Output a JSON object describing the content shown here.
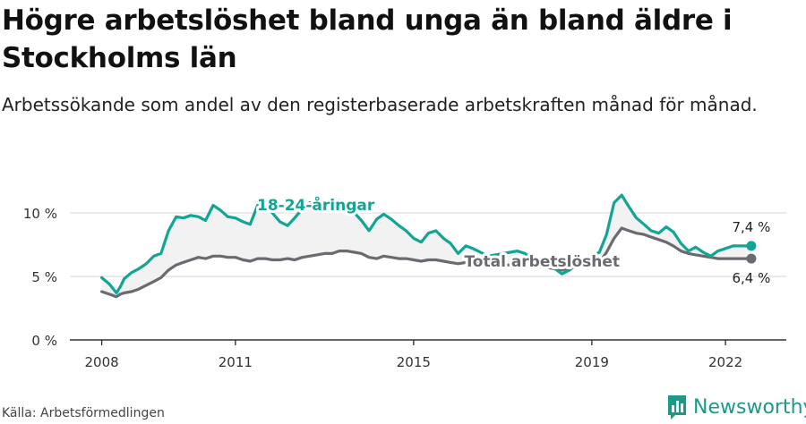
{
  "header": {
    "title": "Högre arbetslöshet bland unga än bland äldre i Stockholms län",
    "subtitle": "Arbetssökande som andel av den registerbaserade arbetskraften månad för månad."
  },
  "footer": {
    "source": "Källa: Arbetsförmedlingen",
    "brand": "Newsworthy"
  },
  "colors": {
    "youth": "#12a594",
    "total": "#6b6a70",
    "band": "#f2f2f2",
    "grid": "#dddddd",
    "axis": "#333333",
    "brand": "#1b9a8a"
  },
  "chart_data": {
    "type": "line",
    "title": "Högre arbetslöshet bland unga än bland äldre i Stockholms län",
    "xlabel": "",
    "ylabel": "",
    "ylim": [
      0,
      12
    ],
    "xlim": [
      2007.4,
      2022.9
    ],
    "yticks": [
      0,
      5,
      10
    ],
    "ytick_labels": [
      "0 %",
      "5 %",
      "10 %"
    ],
    "xticks": [
      2008,
      2011,
      2015,
      2019,
      2022
    ],
    "xtick_labels": [
      "2008",
      "2011",
      "2015",
      "2019",
      "2022"
    ],
    "grid": true,
    "series": [
      {
        "name": "18-24-åringar",
        "color": "#12a594",
        "label_position": "above",
        "x": [
          2008.0,
          2008.17,
          2008.33,
          2008.42,
          2008.5,
          2008.67,
          2008.83,
          2009.0,
          2009.17,
          2009.33,
          2009.5,
          2009.67,
          2009.83,
          2010.0,
          2010.17,
          2010.33,
          2010.5,
          2010.67,
          2010.83,
          2011.0,
          2011.17,
          2011.33,
          2011.5,
          2011.67,
          2011.83,
          2012.0,
          2012.17,
          2012.33,
          2012.5,
          2012.67,
          2012.83,
          2013.0,
          2013.17,
          2013.33,
          2013.5,
          2013.67,
          2013.83,
          2014.0,
          2014.17,
          2014.33,
          2014.5,
          2014.67,
          2014.83,
          2015.0,
          2015.17,
          2015.33,
          2015.5,
          2015.67,
          2015.83,
          2016.0,
          2016.17,
          2016.33,
          2016.5,
          2016.67,
          2016.83,
          2017.0,
          2017.17,
          2017.33,
          2017.5,
          2017.67,
          2017.83,
          2018.0,
          2018.17,
          2018.33,
          2018.5,
          2018.67,
          2018.83,
          2019.0,
          2019.17,
          2019.33,
          2019.5,
          2019.67,
          2019.83,
          2020.0,
          2020.17,
          2020.33,
          2020.5,
          2020.67,
          2020.83,
          2021.0,
          2021.17,
          2021.33,
          2021.5,
          2021.67,
          2021.83,
          2022.0,
          2022.17,
          2022.33,
          2022.5,
          2022.58
        ],
        "values": [
          4.9,
          4.4,
          3.7,
          4.2,
          4.8,
          5.3,
          5.6,
          6.0,
          6.6,
          6.8,
          8.6,
          9.7,
          9.6,
          9.8,
          9.7,
          9.4,
          10.6,
          10.2,
          9.7,
          9.6,
          9.3,
          9.1,
          10.6,
          10.7,
          10.0,
          9.3,
          9.0,
          9.6,
          10.3,
          10.8,
          10.3,
          10.5,
          10.9,
          11.0,
          10.6,
          10.0,
          9.4,
          8.6,
          9.5,
          9.9,
          9.5,
          9.0,
          8.6,
          8.0,
          7.7,
          8.4,
          8.6,
          8.0,
          7.6,
          6.8,
          7.4,
          7.2,
          6.9,
          6.6,
          6.7,
          6.8,
          6.9,
          7.0,
          6.8,
          6.4,
          6.3,
          6.1,
          5.6,
          5.2,
          5.5,
          6.0,
          6.4,
          6.6,
          6.9,
          8.3,
          10.8,
          11.4,
          10.5,
          9.6,
          9.1,
          8.6,
          8.4,
          8.9,
          8.5,
          7.6,
          7.0,
          7.3,
          6.9,
          6.6,
          7.0,
          7.2,
          7.4,
          7.4,
          7.4,
          7.4
        ],
        "last_value_label": "7,4 %"
      },
      {
        "name": "Total arbetslöshet",
        "color": "#6b6a70",
        "label_position": "below",
        "x": [
          2008.0,
          2008.17,
          2008.33,
          2008.42,
          2008.5,
          2008.67,
          2008.83,
          2009.0,
          2009.17,
          2009.33,
          2009.5,
          2009.67,
          2009.83,
          2010.0,
          2010.17,
          2010.33,
          2010.5,
          2010.67,
          2010.83,
          2011.0,
          2011.17,
          2011.33,
          2011.5,
          2011.67,
          2011.83,
          2012.0,
          2012.17,
          2012.33,
          2012.5,
          2012.67,
          2012.83,
          2013.0,
          2013.17,
          2013.33,
          2013.5,
          2013.67,
          2013.83,
          2014.0,
          2014.17,
          2014.33,
          2014.5,
          2014.67,
          2014.83,
          2015.0,
          2015.17,
          2015.33,
          2015.5,
          2015.67,
          2015.83,
          2016.0,
          2016.17,
          2016.33,
          2016.5,
          2016.67,
          2016.83,
          2017.0,
          2017.17,
          2017.33,
          2017.5,
          2017.67,
          2017.83,
          2018.0,
          2018.17,
          2018.33,
          2018.5,
          2018.67,
          2018.83,
          2019.0,
          2019.17,
          2019.33,
          2019.5,
          2019.67,
          2019.83,
          2020.0,
          2020.17,
          2020.33,
          2020.5,
          2020.67,
          2020.83,
          2021.0,
          2021.17,
          2021.33,
          2021.5,
          2021.67,
          2021.83,
          2022.0,
          2022.17,
          2022.33,
          2022.5,
          2022.58
        ],
        "values": [
          3.8,
          3.6,
          3.4,
          3.6,
          3.7,
          3.8,
          4.0,
          4.3,
          4.6,
          4.9,
          5.5,
          5.9,
          6.1,
          6.3,
          6.5,
          6.4,
          6.6,
          6.6,
          6.5,
          6.5,
          6.3,
          6.2,
          6.4,
          6.4,
          6.3,
          6.3,
          6.4,
          6.3,
          6.5,
          6.6,
          6.7,
          6.8,
          6.8,
          7.0,
          7.0,
          6.9,
          6.8,
          6.5,
          6.4,
          6.6,
          6.5,
          6.4,
          6.4,
          6.3,
          6.2,
          6.3,
          6.3,
          6.2,
          6.1,
          6.0,
          6.1,
          6.1,
          6.0,
          5.9,
          5.9,
          5.9,
          5.9,
          6.0,
          5.9,
          5.8,
          5.8,
          5.7,
          5.6,
          5.5,
          5.6,
          5.8,
          5.9,
          6.0,
          6.1,
          6.9,
          8.0,
          8.8,
          8.6,
          8.4,
          8.3,
          8.1,
          7.9,
          7.7,
          7.4,
          7.0,
          6.8,
          6.7,
          6.6,
          6.5,
          6.4,
          6.4,
          6.4,
          6.4,
          6.4,
          6.4
        ],
        "last_value_label": "6,4 %"
      }
    ]
  }
}
